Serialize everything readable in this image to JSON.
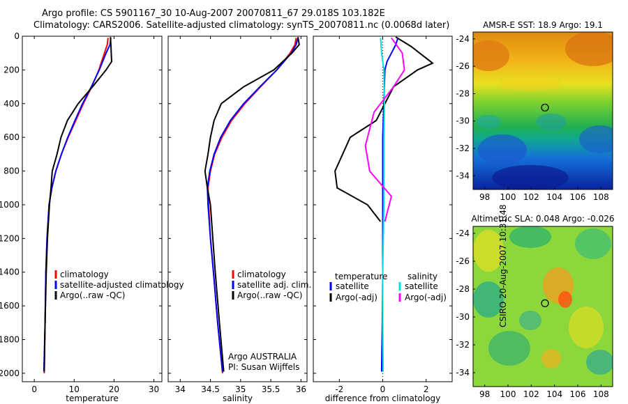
{
  "header": {
    "line1": "Argo profile: CS 5901167_30 10-Aug-2007 20070811_67 29.018S 103.182E",
    "line2": "Climatology: CARS2006. Satellite-adjusted climatology: synTS_20070811.nc (0.0068d later)"
  },
  "side_text": "CSIRO 20-Aug-2007 10:31:48",
  "chart_data": [
    {
      "id": "temperature",
      "type": "line",
      "xlabel": "temperature",
      "ylabel": "",
      "xlim": [
        -3,
        32
      ],
      "ylim": [
        2050,
        0
      ],
      "xticks": [
        0,
        10,
        20,
        30
      ],
      "yticks": [
        0,
        200,
        400,
        600,
        800,
        1000,
        1200,
        1400,
        1600,
        1800,
        2000
      ],
      "legend": {
        "placement": "lower-right",
        "entries": [
          "climatology",
          "satellite-adjusted climatology",
          "Argo(..raw -QC)"
        ]
      },
      "series": [
        {
          "name": "climatology",
          "color": "#ff0000",
          "x": [
            18.5,
            18.3,
            17.6,
            16.2,
            14.4,
            12.3,
            10.4,
            8.5,
            6.8,
            5.4,
            4.4,
            3.7,
            3.2,
            2.9,
            2.7,
            2.5
          ],
          "y": [
            10,
            50,
            100,
            200,
            300,
            400,
            500,
            600,
            700,
            800,
            900,
            1000,
            1200,
            1400,
            1700,
            2000
          ]
        },
        {
          "name": "satellite-adjusted climatology",
          "color": "#0000ff",
          "x": [
            19.2,
            19.0,
            18.0,
            16.3,
            14.3,
            12.1,
            10.2,
            8.4,
            6.8,
            5.4,
            4.4,
            3.7,
            3.2,
            2.9,
            2.7,
            2.4
          ],
          "y": [
            10,
            50,
            100,
            200,
            300,
            400,
            500,
            600,
            700,
            800,
            900,
            1000,
            1200,
            1400,
            1700,
            1990
          ]
        },
        {
          "name": "Argo(..raw -QC)",
          "color": "#000000",
          "x": [
            19.1,
            19.2,
            19.4,
            18.0,
            14.6,
            11.0,
            8.3,
            6.7,
            5.7,
            4.5,
            4.2,
            3.8,
            3.3,
            3.0,
            2.7,
            2.5
          ],
          "y": [
            5,
            50,
            150,
            200,
            300,
            400,
            500,
            600,
            700,
            800,
            900,
            1000,
            1200,
            1400,
            1700,
            1990
          ]
        }
      ]
    },
    {
      "id": "salinity",
      "type": "line",
      "xlabel": "salinity",
      "ylabel": "",
      "xlim": [
        33.8,
        36.1
      ],
      "ylim": [
        2050,
        0
      ],
      "xticks": [
        34,
        34.5,
        35,
        35.5,
        36
      ],
      "xticklabels": [
        "34",
        "34.5",
        "35",
        "35.5",
        "36"
      ],
      "legend": {
        "placement": "lower-right",
        "entries": [
          "climatology",
          "satellite adj. clim.",
          "Argo(..raw -QC)"
        ]
      },
      "annotations": [
        "Argo AUSTRALIA",
        "PI: Susan Wijffels"
      ],
      "series": [
        {
          "name": "climatology",
          "color": "#ff0000",
          "x": [
            35.92,
            35.9,
            35.82,
            35.6,
            35.33,
            35.07,
            34.85,
            34.69,
            34.57,
            34.5,
            34.46,
            34.47,
            34.5,
            34.55,
            34.62,
            34.7
          ],
          "y": [
            10,
            50,
            100,
            200,
            300,
            400,
            500,
            600,
            700,
            800,
            900,
            1000,
            1200,
            1400,
            1700,
            2000
          ]
        },
        {
          "name": "satellite adj. clim.",
          "color": "#0000ff",
          "x": [
            35.95,
            35.92,
            35.84,
            35.6,
            35.32,
            35.05,
            34.83,
            34.67,
            34.56,
            34.49,
            34.45,
            34.46,
            34.5,
            34.55,
            34.62,
            34.7
          ],
          "y": [
            10,
            50,
            100,
            200,
            300,
            400,
            500,
            600,
            700,
            800,
            900,
            1000,
            1200,
            1400,
            1700,
            1990
          ]
        },
        {
          "name": "Argo(..raw -QC)",
          "color": "#000000",
          "x": [
            35.95,
            35.97,
            35.85,
            35.55,
            35.05,
            34.68,
            34.56,
            34.5,
            34.46,
            34.41,
            34.45,
            34.5,
            34.54,
            34.58,
            34.65,
            34.72
          ],
          "y": [
            5,
            50,
            100,
            200,
            300,
            400,
            500,
            600,
            700,
            800,
            900,
            1000,
            1200,
            1400,
            1700,
            1990
          ]
        }
      ]
    },
    {
      "id": "difference",
      "type": "line",
      "xlabel": "difference from climatology",
      "ylabel": "",
      "xlim": [
        -3.2,
        3.2
      ],
      "ylim": [
        2050,
        0
      ],
      "xticks": [
        -2,
        0,
        2
      ],
      "legend": {
        "placement": "lower-center",
        "headings": [
          "temperature",
          "salinity"
        ],
        "entries": [
          "satellite",
          "Argo(-adj)",
          "satellite",
          "Argo(-adj)"
        ]
      },
      "series": [
        {
          "name": "satellite",
          "group": "temperature",
          "color": "#0000ff",
          "x": [
            0.7,
            0.6,
            0.2,
            0.1,
            0.05,
            0.0,
            0.0,
            0.0,
            0.0,
            -0.02,
            -0.05
          ],
          "y": [
            10,
            50,
            150,
            200,
            400,
            600,
            800,
            1000,
            1400,
            1700,
            1990
          ]
        },
        {
          "name": "Argo(-adj)",
          "group": "temperature",
          "color": "#000000",
          "x": [
            0.6,
            1.3,
            2.3,
            1.6,
            0.5,
            -0.3,
            -1.5,
            -2.2,
            -2.1,
            -0.7,
            -0.1
          ],
          "y": [
            5,
            60,
            160,
            200,
            300,
            500,
            600,
            800,
            900,
            1000,
            1100
          ]
        },
        {
          "name": "satellite",
          "group": "salinity",
          "color": "#00e0e0",
          "x": [
            -0.1,
            -0.05,
            0.05,
            0.08,
            0.05,
            0.05,
            0.05,
            0.0,
            0.0,
            0.02
          ],
          "y": [
            10,
            100,
            200,
            400,
            600,
            800,
            1000,
            1400,
            1700,
            1990
          ]
        },
        {
          "name": "Argo(-adj)",
          "group": "salinity",
          "color": "#ff00ff",
          "x": [
            0.4,
            0.9,
            1.0,
            0.5,
            -0.4,
            -0.8,
            -0.6,
            0.4,
            0.2,
            0.1
          ],
          "y": [
            10,
            100,
            200,
            300,
            450,
            650,
            800,
            950,
            1050,
            1100
          ]
        }
      ]
    },
    {
      "id": "sst-map",
      "type": "heatmap",
      "title": "AMSR-E SST: 18.9 Argo: 19.1",
      "xlim": [
        97,
        109
      ],
      "ylim": [
        -35,
        -23.5
      ],
      "xticks": [
        98,
        100,
        102,
        104,
        106,
        108
      ],
      "yticks": [
        -24,
        -26,
        -28,
        -30,
        -32,
        -34
      ],
      "argo_position": {
        "lon": 103.182,
        "lat": -29.018
      }
    },
    {
      "id": "sla-map",
      "type": "heatmap",
      "title": "Altimetric SLA: 0.048 Argo: -0.026",
      "xlim": [
        97,
        109
      ],
      "ylim": [
        -35,
        -23.5
      ],
      "xticks": [
        98,
        100,
        102,
        104,
        106,
        108
      ],
      "yticks": [
        -24,
        -26,
        -28,
        -30,
        -32,
        -34
      ],
      "argo_position": {
        "lon": 103.182,
        "lat": -29.018
      }
    }
  ]
}
